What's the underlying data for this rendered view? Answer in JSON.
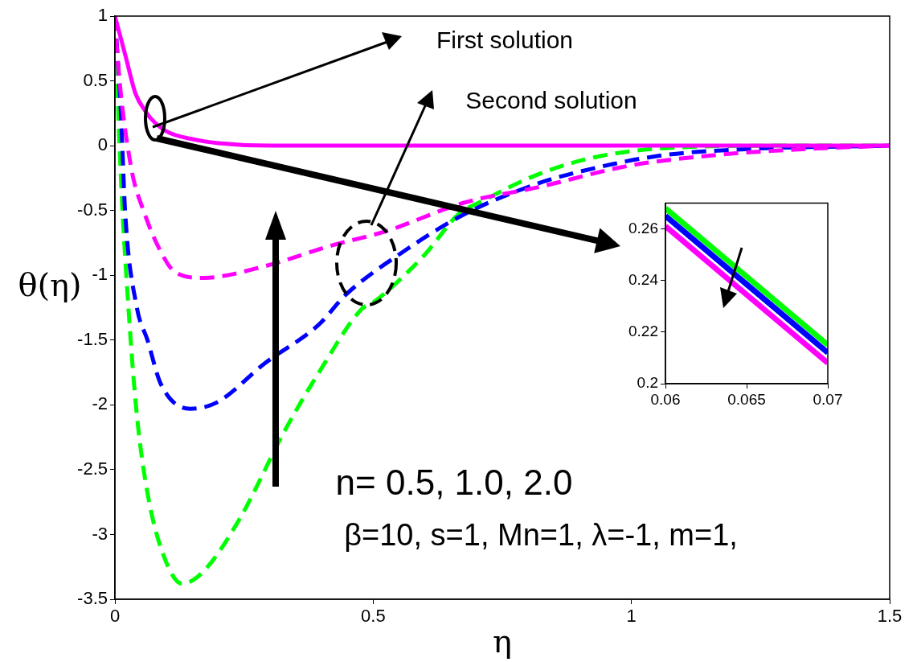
{
  "chart_data": [
    {
      "type": "line",
      "xlabel": "η",
      "ylabel": "θ(η)",
      "xlim": [
        0,
        1.5
      ],
      "xticks": [
        0,
        0.5,
        1,
        1.5
      ],
      "ylim": [
        -3.5,
        1
      ],
      "yticks": [
        -3.5,
        -3,
        -2.5,
        -2,
        -1.5,
        -1,
        -0.5,
        0,
        0.5,
        1
      ],
      "grid": false,
      "annotations": [
        "First solution",
        "Second solution",
        "n= 0.5, 1.0, 2.0",
        "β=10, s=1, Mn=1, λ=-1, m=1,"
      ],
      "series": [
        {
          "color": "#00ff00",
          "line_style": "dashed",
          "x": [
            0,
            0.011,
            0.026,
            0.042,
            0.063,
            0.094,
            0.13,
            0.17,
            0.24,
            0.33,
            0.395,
            0.478,
            0.5,
            0.6,
            0.665,
            0.71,
            0.82,
            0.94,
            1.11,
            1.3,
            1.5
          ],
          "values": [
            1,
            -0.2,
            -1.24,
            -2.06,
            -2.68,
            -3.16,
            -3.38,
            -3.29,
            -2.89,
            -2.19,
            -1.75,
            -1.26,
            -1.21,
            -0.84,
            -0.53,
            -0.43,
            -0.22,
            -0.08,
            -0.01,
            0,
            0
          ]
        },
        {
          "color": "#0000ff",
          "line_style": "dashed",
          "x": [
            0,
            0.011,
            0.02,
            0.042,
            0.063,
            0.089,
            0.146,
            0.198,
            0.29,
            0.395,
            0.447,
            0.55,
            0.676,
            0.82,
            0.88,
            1.05,
            1.23,
            1.5
          ],
          "values": [
            1,
            0.3,
            -0.53,
            -1.24,
            -1.5,
            -1.84,
            -2.03,
            -1.98,
            -1.68,
            -1.38,
            -1.15,
            -0.84,
            -0.53,
            -0.29,
            -0.22,
            -0.08,
            -0.025,
            0
          ]
        },
        {
          "color": "#ff00ff",
          "line_style": "dashed",
          "x": [
            0,
            0.006,
            0.031,
            0.058,
            0.084,
            0.115,
            0.17,
            0.29,
            0.42,
            0.525,
            0.676,
            0.82,
            0.995,
            1.17,
            1.34,
            1.5
          ],
          "values": [
            1,
            0.63,
            -0.16,
            -0.53,
            -0.78,
            -0.97,
            -1.02,
            -0.93,
            -0.77,
            -0.66,
            -0.44,
            -0.32,
            -0.155,
            -0.07,
            -0.025,
            0
          ]
        },
        {
          "color": "#ff00ff",
          "line_style": "solid",
          "x": [
            0,
            0.02,
            0.04,
            0.06,
            0.07,
            0.1,
            0.15,
            0.2,
            0.3,
            0.5,
            1,
            1.5
          ],
          "values": [
            1,
            0.7,
            0.4,
            0.261,
            0.208,
            0.11,
            0.05,
            0.02,
            0,
            0,
            0,
            0
          ]
        }
      ]
    },
    {
      "type": "line",
      "xlim": [
        0.06,
        0.07
      ],
      "xticks": [
        0.06,
        0.065,
        0.07
      ],
      "ylim": [
        0.2,
        0.27
      ],
      "yticks": [
        0.2,
        0.22,
        0.24,
        0.26
      ],
      "grid": false,
      "series": [
        {
          "color": "#00ff00",
          "line_style": "solid",
          "x": [
            0.06,
            0.07
          ],
          "values": [
            0.268,
            0.215
          ]
        },
        {
          "color": "#0000ff",
          "line_style": "solid",
          "x": [
            0.06,
            0.07
          ],
          "values": [
            0.265,
            0.212
          ]
        },
        {
          "color": "#ff00ff",
          "line_style": "solid",
          "x": [
            0.06,
            0.07
          ],
          "values": [
            0.261,
            0.208
          ]
        }
      ]
    }
  ]
}
